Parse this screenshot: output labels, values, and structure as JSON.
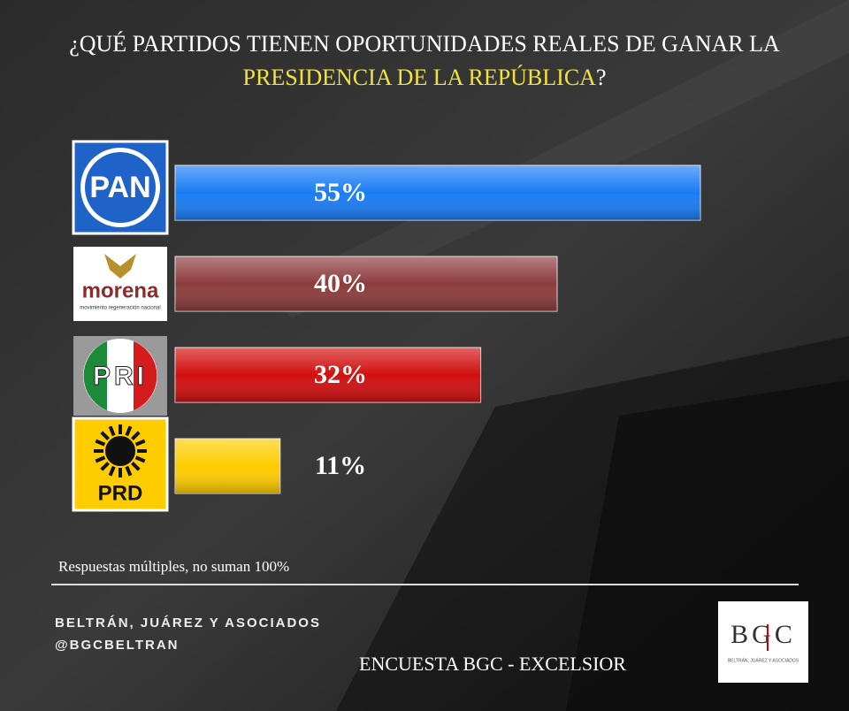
{
  "chart_data": {
    "type": "bar",
    "orientation": "horizontal",
    "title_line1": "¿QUÉ PARTIDOS TIENEN OPORTUNIDADES REALES DE GANAR LA",
    "title_highlight": "PRESIDENCIA DE LA REPÚBLICA",
    "title_end": "?",
    "categories": [
      "PAN",
      "morena",
      "PRI",
      "PRD"
    ],
    "morena_tagline": "movimiento regeneración nacional",
    "values": [
      55,
      40,
      32,
      11
    ],
    "value_labels": [
      "55%",
      "40%",
      "32%",
      "11%"
    ],
    "colors": [
      "#1a7cf5",
      "#8c3b3b",
      "#d10f0f",
      "#ffcc00"
    ],
    "note": "Respuestas múltiples, no suman 100%",
    "footer_org": "BELTRÁN, JUÁREZ Y ASOCIADOS",
    "footer_handle": "@BGCBELTRAN",
    "footer_source": "ENCUESTA BGC - EXCELSIOR",
    "logo_text": "BGC",
    "logo_subtext": "BELTRÁN, JUÁREZ Y ASOCIADOS"
  }
}
